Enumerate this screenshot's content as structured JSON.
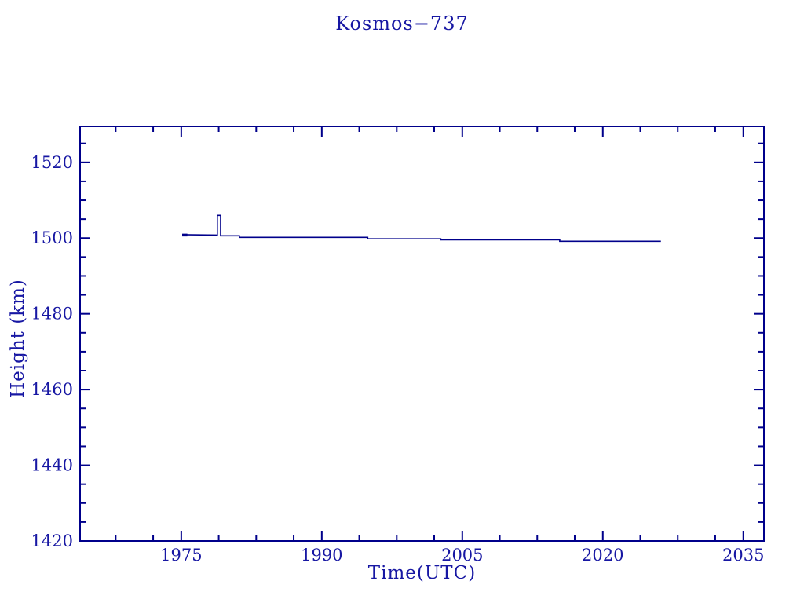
{
  "title": "Kosmos−737",
  "xlabel": "Time(UTC)",
  "ylabel": "Height (km)",
  "colors": {
    "plot_color": "#00008b",
    "text_color": "#1717a3",
    "background": "#ffffff"
  },
  "chart_data": {
    "type": "line",
    "title": "Kosmos−737",
    "xlabel": "Time(UTC)",
    "ylabel": "Height (km)",
    "xlim": [
      1964.2,
      2037.2
    ],
    "ylim": [
      1420,
      1529.5
    ],
    "grid": false,
    "legend": "none",
    "x_major_ticks": [
      1975,
      1990,
      2005,
      2020,
      2035
    ],
    "x_minor_ticks": [
      1968,
      1972,
      1979,
      1983,
      1987,
      1994,
      1998,
      2002,
      2009,
      2013,
      2017,
      2024,
      2028,
      2032
    ],
    "y_major_ticks": [
      1420,
      1440,
      1460,
      1480,
      1500,
      1520
    ],
    "y_minor_ticks": [
      1425,
      1430,
      1435,
      1445,
      1450,
      1455,
      1465,
      1470,
      1475,
      1485,
      1490,
      1495,
      1505,
      1510,
      1515,
      1525
    ],
    "series": [
      {
        "name": "Kosmos-737 height",
        "points": [
          [
            1975.1,
            1500.9
          ],
          [
            1978.85,
            1500.8
          ],
          [
            1978.85,
            1506.0
          ],
          [
            1979.2,
            1506.0
          ],
          [
            1979.2,
            1500.6
          ],
          [
            1981.2,
            1500.6
          ],
          [
            1981.2,
            1500.2
          ],
          [
            1994.9,
            1500.2
          ],
          [
            1994.9,
            1499.8
          ],
          [
            2002.7,
            1499.8
          ],
          [
            2002.7,
            1499.55
          ],
          [
            2015.4,
            1499.55
          ],
          [
            2015.4,
            1499.15
          ],
          [
            2026.2,
            1499.15
          ]
        ]
      }
    ],
    "start_marker": {
      "x1": 1975.1,
      "x2": 1975.65,
      "y": 1500.8
    }
  }
}
